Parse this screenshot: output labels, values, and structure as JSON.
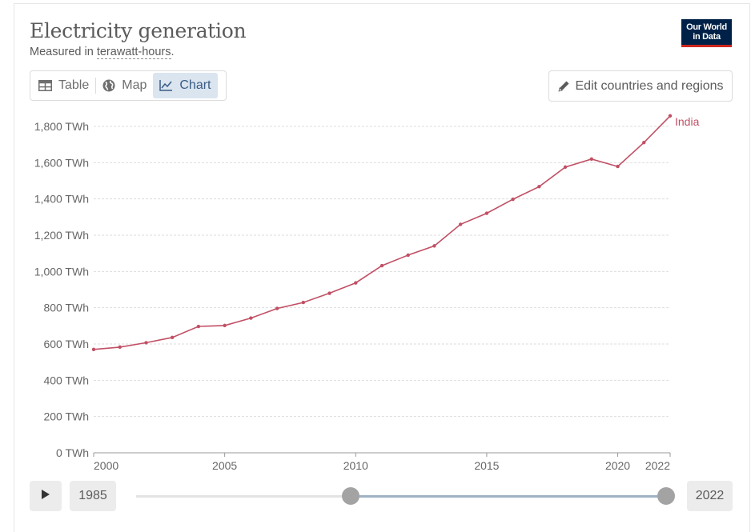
{
  "header": {
    "title": "Electricity generation",
    "subtitle_prefix": "Measured in ",
    "subtitle_unit": "terawatt-hours",
    "subtitle_suffix": ".",
    "logo_line1": "Our World",
    "logo_line2": "in Data"
  },
  "tabs": [
    {
      "label": "Table",
      "icon": "table-icon",
      "active": false
    },
    {
      "label": "Map",
      "icon": "globe-icon",
      "active": false
    },
    {
      "label": "Chart",
      "icon": "line-chart-icon",
      "active": true
    }
  ],
  "edit_button": {
    "label": "Edit countries and regions",
    "icon": "pencil-icon"
  },
  "colors": {
    "series": "#c15065",
    "accent": "#3a5c84",
    "brand": "#002147",
    "brand_line": "#ce261e"
  },
  "chart_data": {
    "type": "line",
    "title": "Electricity generation",
    "ylabel": "",
    "xlabel": "",
    "ylim": [
      0,
      1800
    ],
    "xlim": [
      2000,
      2022
    ],
    "y_ticks": [
      {
        "value": 0,
        "label": "0 TWh"
      },
      {
        "value": 200,
        "label": "200 TWh"
      },
      {
        "value": 400,
        "label": "400 TWh"
      },
      {
        "value": 600,
        "label": "600 TWh"
      },
      {
        "value": 800,
        "label": "800 TWh"
      },
      {
        "value": 1000,
        "label": "1,000 TWh"
      },
      {
        "value": 1200,
        "label": "1,200 TWh"
      },
      {
        "value": 1400,
        "label": "1,400 TWh"
      },
      {
        "value": 1600,
        "label": "1,600 TWh"
      },
      {
        "value": 1800,
        "label": "1,800 TWh"
      }
    ],
    "x_ticks": [
      {
        "value": 2000,
        "label": "2000"
      },
      {
        "value": 2005,
        "label": "2005"
      },
      {
        "value": 2010,
        "label": "2010"
      },
      {
        "value": 2015,
        "label": "2015"
      },
      {
        "value": 2020,
        "label": "2020"
      },
      {
        "value": 2022,
        "label": "2022"
      }
    ],
    "grid": true,
    "series": [
      {
        "name": "India",
        "x": [
          2000,
          2001,
          2002,
          2003,
          2004,
          2005,
          2006,
          2007,
          2008,
          2009,
          2010,
          2011,
          2012,
          2013,
          2014,
          2015,
          2016,
          2017,
          2018,
          2019,
          2020,
          2021,
          2022
        ],
        "values": [
          570,
          583,
          607,
          636,
          697,
          702,
          743,
          796,
          829,
          880,
          937,
          1032,
          1090,
          1141,
          1260,
          1321,
          1398,
          1468,
          1576,
          1620,
          1579,
          1711,
          1858
        ]
      }
    ]
  },
  "timeline": {
    "start_label": "1985",
    "end_label": "2022",
    "range_start_year": 2000,
    "range_end_year": 2022,
    "min_year": 1985,
    "max_year": 2022
  }
}
